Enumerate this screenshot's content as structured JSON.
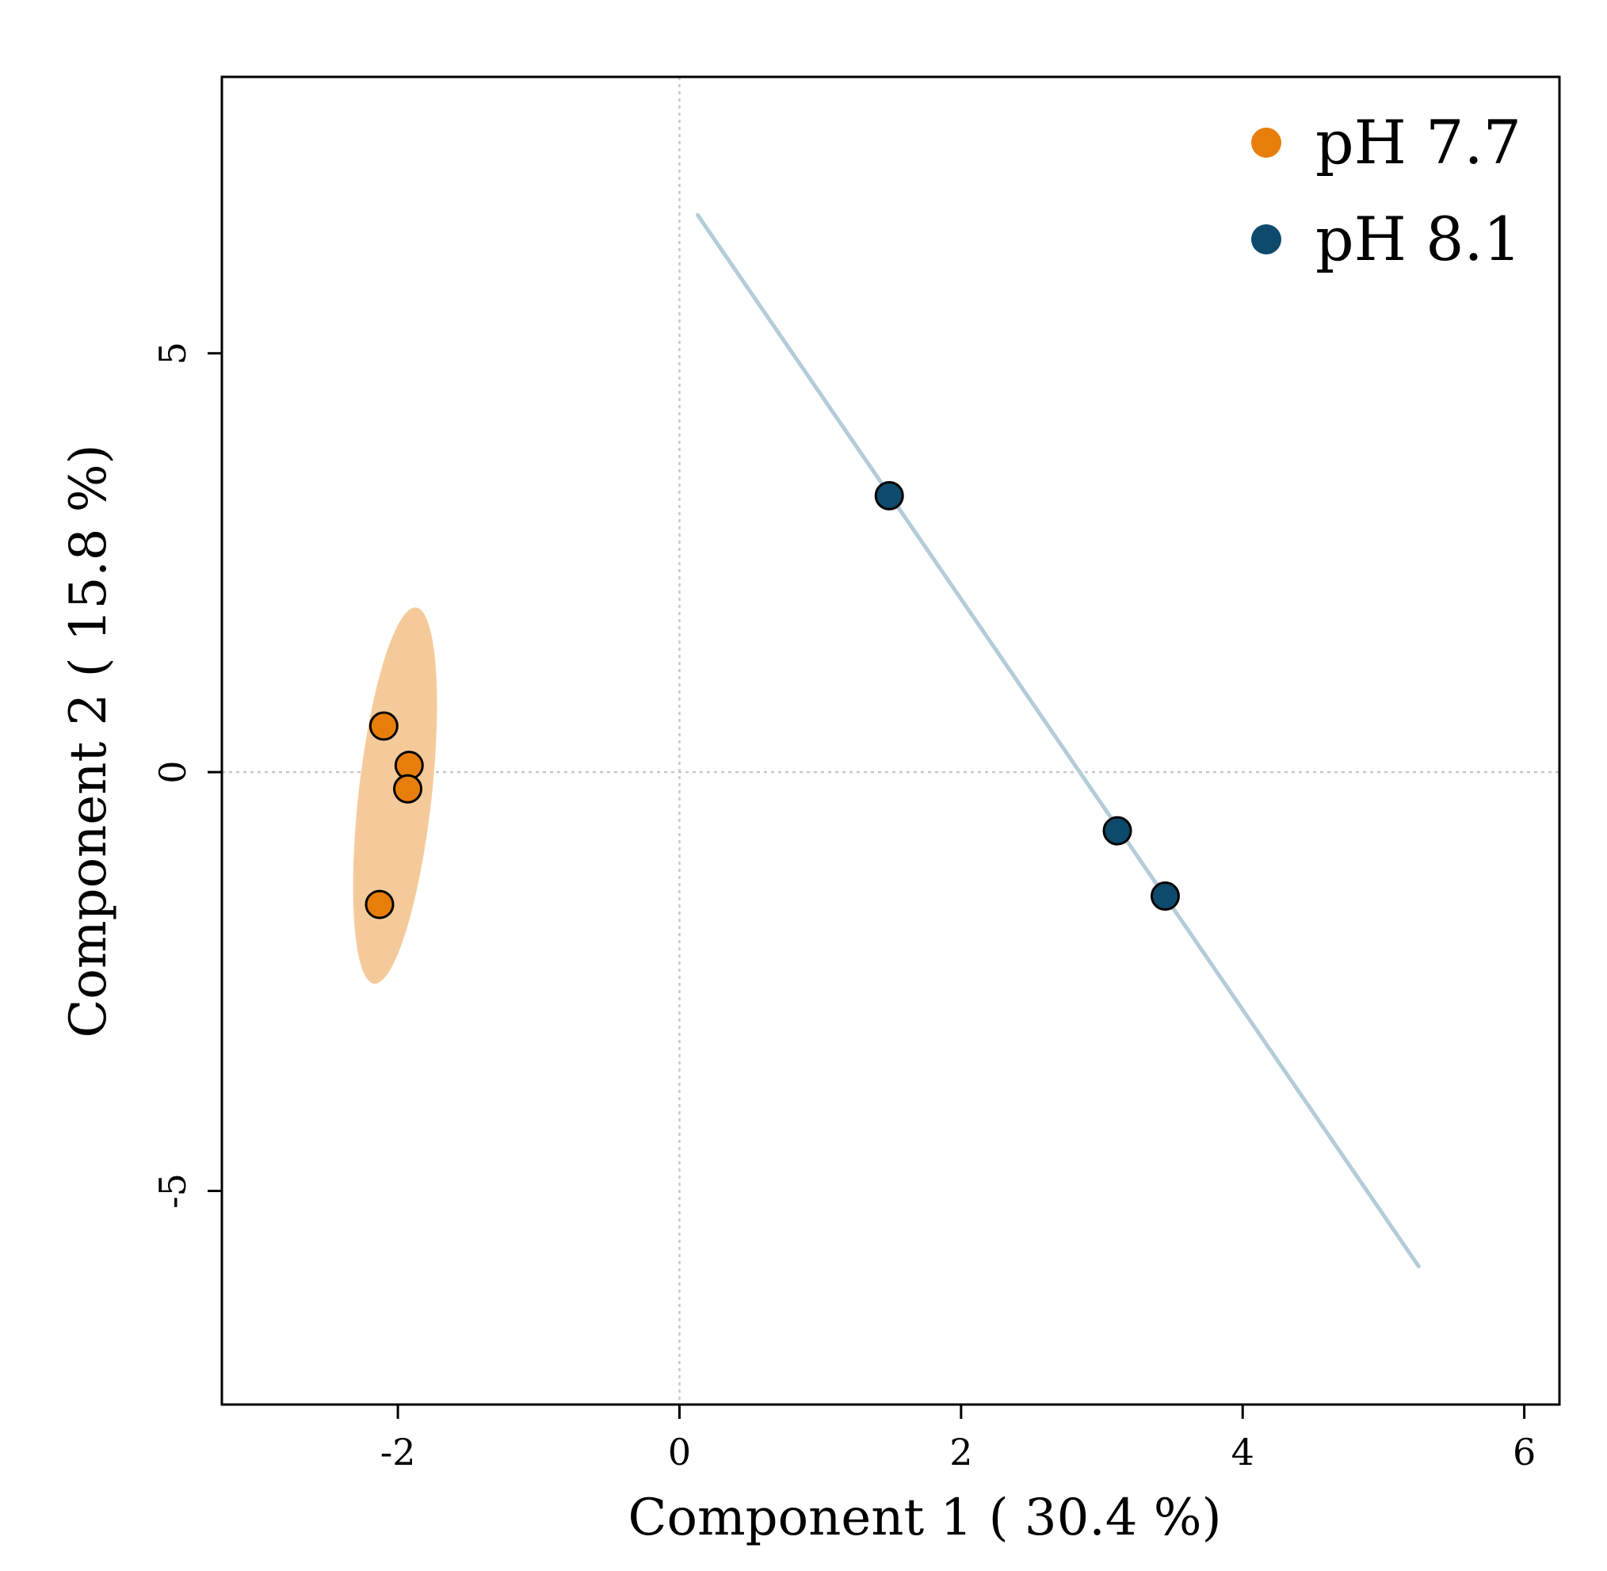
{
  "chart_data": {
    "type": "scatter",
    "title": "",
    "xlabel": "Component 1 ( 30.4 %)",
    "ylabel": "Component 2 ( 15.8 %)",
    "xlim": [
      -3.25,
      6.25
    ],
    "ylim": [
      -7.55,
      8.3
    ],
    "xticks": [
      {
        "value": -2,
        "label": "-2"
      },
      {
        "value": 0,
        "label": "0"
      },
      {
        "value": 2,
        "label": "2"
      },
      {
        "value": 4,
        "label": "4"
      },
      {
        "value": 6,
        "label": "6"
      }
    ],
    "yticks": [
      {
        "value": -5,
        "label": "-5"
      },
      {
        "value": 0,
        "label": "0"
      },
      {
        "value": 5,
        "label": "5"
      }
    ],
    "reference_lines": {
      "x": 0,
      "y": 0
    },
    "legend_position": "top-right",
    "series": [
      {
        "name": "pH 7.7",
        "label": "pH 7.7",
        "color": "#e87e0a",
        "ellipse_color": "#f5ca9a",
        "points": [
          {
            "x": -2.1,
            "y": 0.55
          },
          {
            "x": -1.92,
            "y": 0.08
          },
          {
            "x": -1.93,
            "y": -0.2
          },
          {
            "x": -2.13,
            "y": -1.58
          }
        ],
        "ellipse": {
          "center": [
            -2.02,
            -0.28
          ],
          "semi_major": 2.25,
          "semi_minor": 0.26,
          "angle_deg_from_x": 86.2
        }
      },
      {
        "name": "pH 8.1",
        "label": "pH 8.1",
        "color": "#0d4a6b",
        "ellipse_color": "#b4ccd8",
        "points": [
          {
            "x": 1.49,
            "y": 3.3
          },
          {
            "x": 3.11,
            "y": -0.7
          },
          {
            "x": 3.45,
            "y": -1.48
          }
        ],
        "ellipse": {
          "start": [
            0.13,
            6.65
          ],
          "end": [
            5.25,
            -5.9
          ]
        }
      }
    ]
  }
}
